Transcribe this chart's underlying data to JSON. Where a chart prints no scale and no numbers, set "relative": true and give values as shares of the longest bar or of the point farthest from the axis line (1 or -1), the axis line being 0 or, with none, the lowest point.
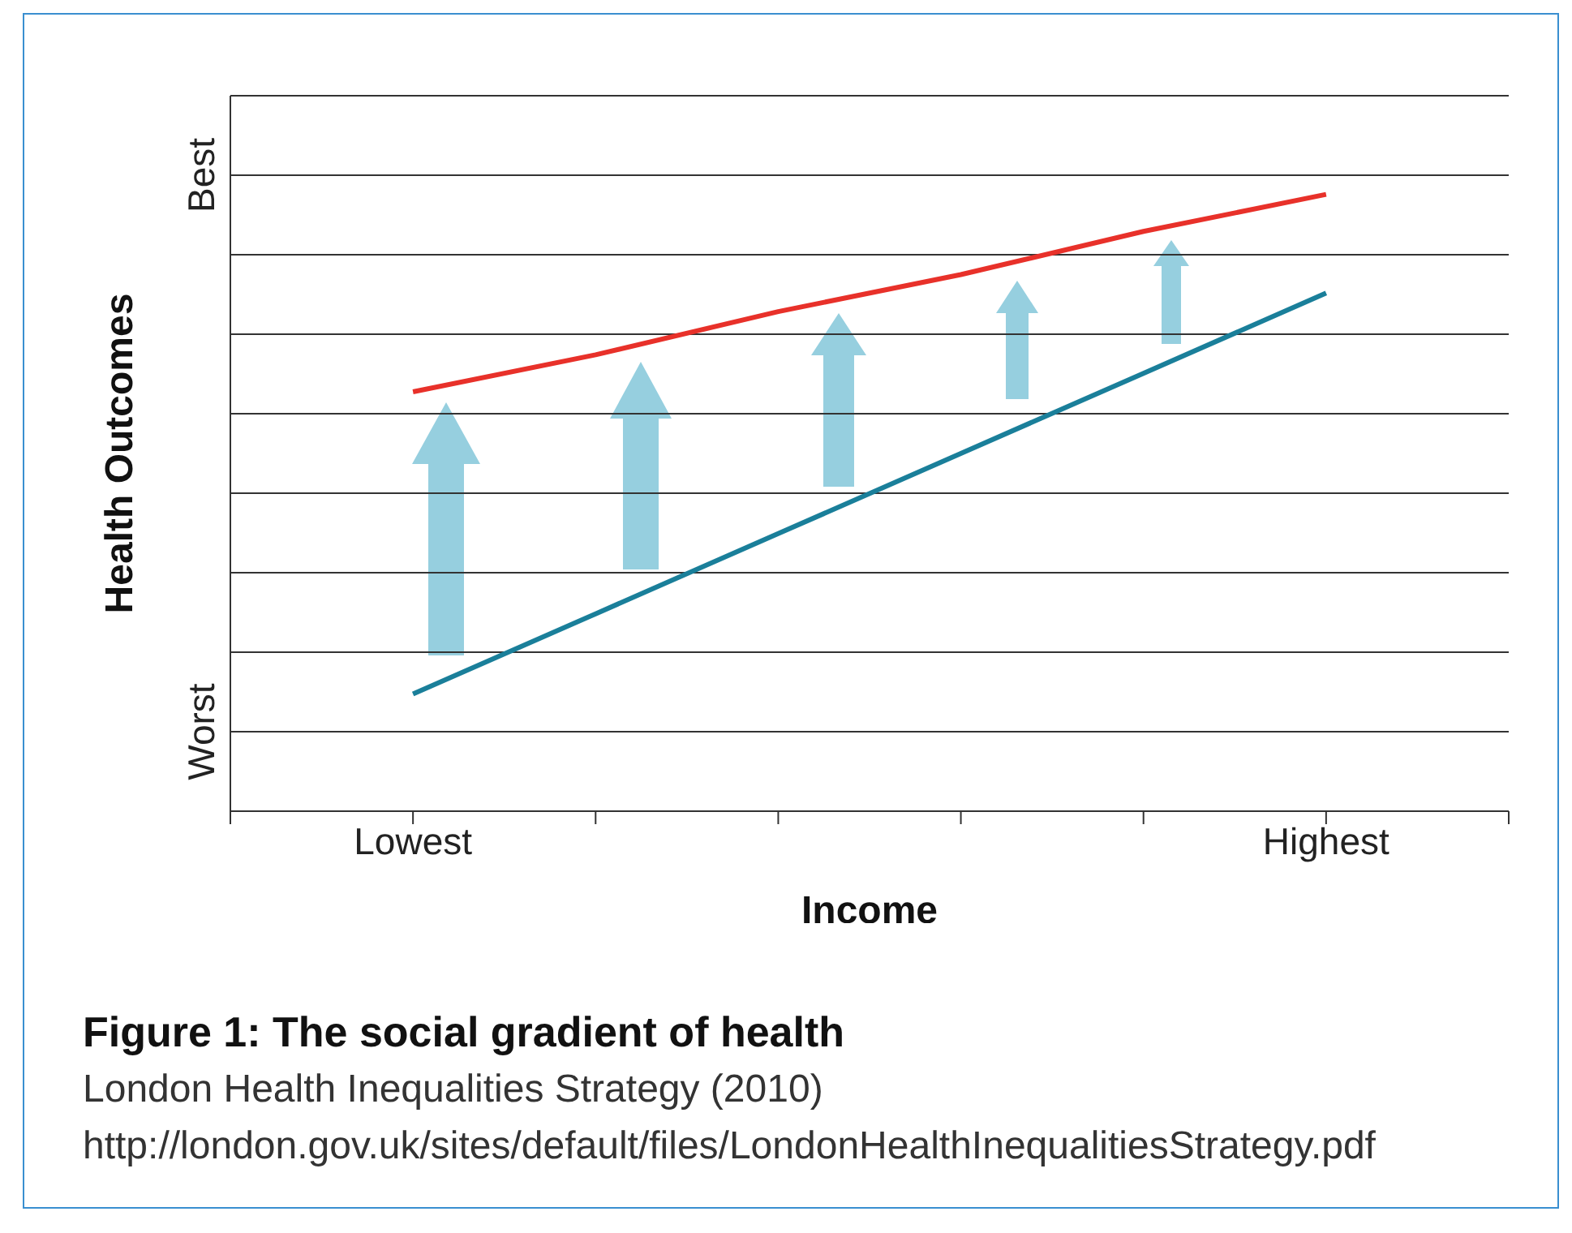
{
  "chart_data": {
    "type": "line",
    "title": "Figure 1: The social gradient of health",
    "xlabel": "Income",
    "ylabel": "Health Outcomes",
    "annotations": [
      "Best",
      "Worst",
      "London Health Inequalities Strategy (2010) http://london.gov.uk/sites/default/files/LondonHealthInequalitiesStrategy.pdf"
    ],
    "categories": [
      "Lowest",
      null,
      null,
      null,
      null,
      "Highest"
    ],
    "relative": true,
    "series": [
      {
        "color": "#e8312a",
        "values": [
          0.68,
          0.74,
          0.81,
          0.87,
          0.94,
          1
        ]
      },
      {
        "color": "#1a7f9a",
        "values": [
          0.19,
          0.32,
          0.45,
          0.58,
          0.71,
          0.84
        ]
      }
    ],
    "grid": "y",
    "legend": false,
    "marker": "none",
    "line_style": "solid"
  }
}
